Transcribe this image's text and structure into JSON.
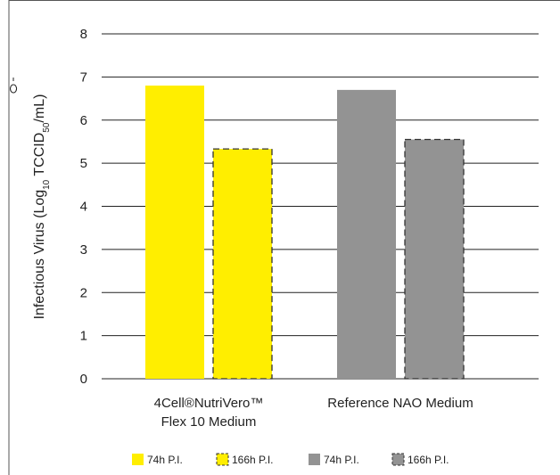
{
  "chart_data": {
    "type": "bar",
    "categories": [
      "4Cell®NutriVero™ Flex 10 Medium",
      "Reference NAO Medium"
    ],
    "category_lines": [
      [
        "4Cell®NutriVero™",
        "Flex 10 Medium"
      ],
      [
        "Reference NAO Medium"
      ]
    ],
    "series": [
      {
        "name": "74h P.I.",
        "category_index": 0,
        "value": 6.8,
        "color": "#ffee00",
        "dashed": false
      },
      {
        "name": "166h P.I.",
        "category_index": 0,
        "value": 5.33,
        "color": "#ffee00",
        "dashed": true
      },
      {
        "name": "74h P.I.",
        "category_index": 1,
        "value": 6.7,
        "color": "#939393",
        "dashed": false
      },
      {
        "name": "166h P.I.",
        "category_index": 1,
        "value": 5.55,
        "color": "#939393",
        "dashed": true
      }
    ],
    "ylabel_parts": {
      "prefix": "Infectious Virus (Log",
      "sub1": "10",
      "mid": " TCCID",
      "sub2": "50",
      "suffix": "/mL)"
    },
    "ylim": [
      0,
      8
    ],
    "yticks": [
      "0",
      "1",
      "2",
      "3",
      "4",
      "5",
      "6",
      "7",
      "8"
    ],
    "grid": true,
    "legend_position": "bottom",
    "legend": [
      {
        "label": "74h P.I.",
        "color": "#ffee00",
        "dashed": false
      },
      {
        "label": "166h P.I.",
        "color": "#ffee00",
        "dashed": true
      },
      {
        "label": "74h P.I.",
        "color": "#939393",
        "dashed": false
      },
      {
        "label": "166h P.I.",
        "color": "#939393",
        "dashed": true
      }
    ]
  }
}
